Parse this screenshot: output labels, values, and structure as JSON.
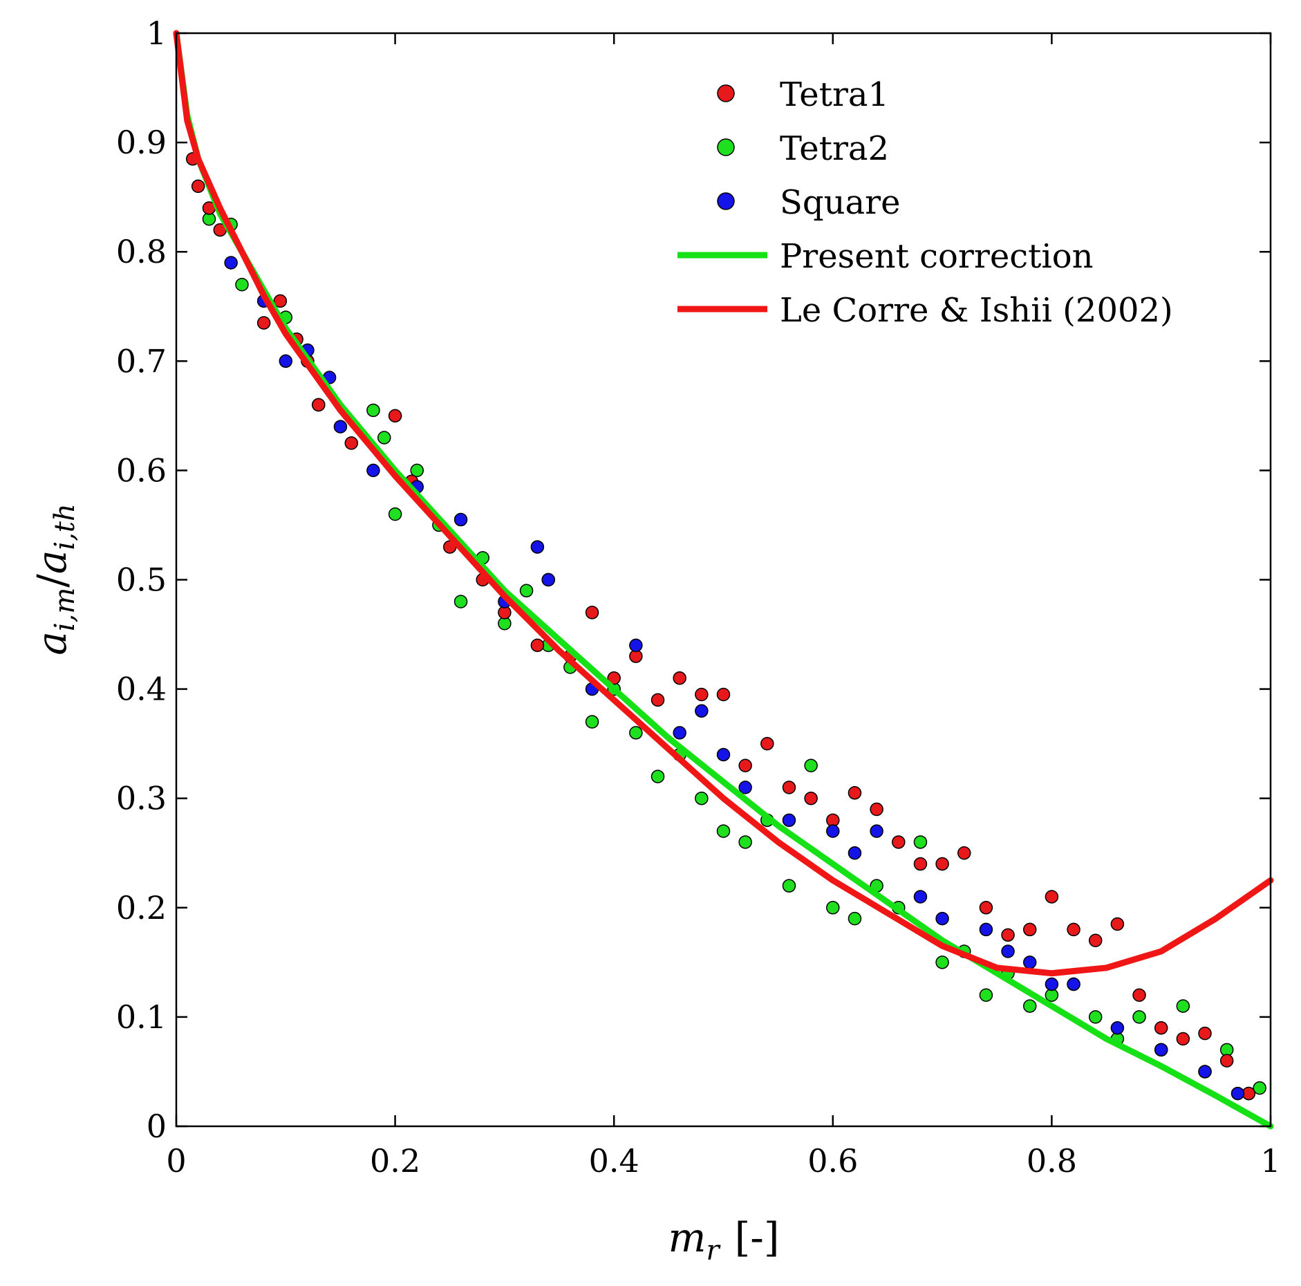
{
  "chart_data": {
    "type": "scatter",
    "title": "",
    "xlabel_main": "m",
    "xlabel_sub": "r",
    "xlabel_unit": "[-]",
    "ylabel_num_main": "a",
    "ylabel_num_sub": "i,m",
    "ylabel_slash": "/",
    "ylabel_den_main": "a",
    "ylabel_den_sub": "i,th",
    "xlim": [
      0,
      1
    ],
    "ylim": [
      0,
      1
    ],
    "xticks": [
      0,
      0.2,
      0.4,
      0.6,
      0.8,
      1
    ],
    "xtick_labels": [
      "0",
      "0.2",
      "0.4",
      "0.6",
      "0.8",
      "1"
    ],
    "yticks": [
      0,
      0.1,
      0.2,
      0.3,
      0.4,
      0.5,
      0.6,
      0.7,
      0.8,
      0.9,
      1
    ],
    "ytick_labels": [
      "0",
      "0.1",
      "0.2",
      "0.3",
      "0.4",
      "0.5",
      "0.6",
      "0.7",
      "0.8",
      "0.9",
      "1"
    ],
    "grid": false,
    "legend_position": "top-right",
    "scatter_series": [
      {
        "name": "Tetra1",
        "color": "#e8191b",
        "x": [
          0.015,
          0.02,
          0.03,
          0.04,
          0.08,
          0.095,
          0.11,
          0.12,
          0.13,
          0.16,
          0.2,
          0.215,
          0.25,
          0.28,
          0.3,
          0.33,
          0.34,
          0.36,
          0.38,
          0.4,
          0.42,
          0.44,
          0.46,
          0.48,
          0.5,
          0.52,
          0.54,
          0.56,
          0.58,
          0.6,
          0.62,
          0.64,
          0.66,
          0.68,
          0.7,
          0.72,
          0.74,
          0.76,
          0.78,
          0.8,
          0.82,
          0.84,
          0.86,
          0.88,
          0.9,
          0.92,
          0.94,
          0.96,
          0.98
        ],
        "y": [
          0.885,
          0.86,
          0.84,
          0.82,
          0.735,
          0.755,
          0.72,
          0.7,
          0.66,
          0.625,
          0.65,
          0.59,
          0.53,
          0.5,
          0.47,
          0.44,
          0.5,
          0.43,
          0.47,
          0.41,
          0.43,
          0.39,
          0.41,
          0.395,
          0.395,
          0.33,
          0.35,
          0.31,
          0.3,
          0.28,
          0.305,
          0.29,
          0.26,
          0.24,
          0.24,
          0.25,
          0.2,
          0.175,
          0.18,
          0.21,
          0.18,
          0.17,
          0.185,
          0.12,
          0.09,
          0.08,
          0.085,
          0.06,
          0.03
        ]
      },
      {
        "name": "Tetra2",
        "color": "#1fe01f",
        "x": [
          0.03,
          0.05,
          0.06,
          0.1,
          0.13,
          0.18,
          0.19,
          0.2,
          0.22,
          0.24,
          0.26,
          0.28,
          0.3,
          0.32,
          0.34,
          0.36,
          0.38,
          0.4,
          0.42,
          0.44,
          0.46,
          0.48,
          0.5,
          0.52,
          0.54,
          0.56,
          0.58,
          0.6,
          0.62,
          0.64,
          0.66,
          0.68,
          0.7,
          0.72,
          0.74,
          0.76,
          0.78,
          0.8,
          0.82,
          0.84,
          0.86,
          0.88,
          0.9,
          0.92,
          0.94,
          0.96,
          0.98,
          0.99
        ],
        "y": [
          0.83,
          0.825,
          0.77,
          0.74,
          0.66,
          0.655,
          0.63,
          0.56,
          0.6,
          0.55,
          0.48,
          0.52,
          0.46,
          0.49,
          0.44,
          0.42,
          0.37,
          0.4,
          0.36,
          0.32,
          0.34,
          0.3,
          0.27,
          0.26,
          0.28,
          0.22,
          0.33,
          0.2,
          0.19,
          0.22,
          0.2,
          0.26,
          0.15,
          0.16,
          0.12,
          0.14,
          0.11,
          0.12,
          0.13,
          0.1,
          0.08,
          0.1,
          0.07,
          0.11,
          0.05,
          0.07,
          0.03,
          0.035
        ]
      },
      {
        "name": "Square",
        "color": "#1414e8",
        "x": [
          0.05,
          0.08,
          0.1,
          0.12,
          0.14,
          0.15,
          0.18,
          0.22,
          0.26,
          0.3,
          0.33,
          0.34,
          0.38,
          0.42,
          0.46,
          0.48,
          0.5,
          0.52,
          0.56,
          0.6,
          0.62,
          0.64,
          0.68,
          0.7,
          0.74,
          0.76,
          0.78,
          0.8,
          0.82,
          0.86,
          0.9,
          0.94,
          0.97
        ],
        "y": [
          0.79,
          0.755,
          0.7,
          0.71,
          0.685,
          0.64,
          0.6,
          0.585,
          0.555,
          0.48,
          0.53,
          0.5,
          0.4,
          0.44,
          0.36,
          0.38,
          0.34,
          0.31,
          0.28,
          0.27,
          0.25,
          0.27,
          0.21,
          0.19,
          0.18,
          0.16,
          0.15,
          0.13,
          0.13,
          0.09,
          0.07,
          0.05,
          0.03
        ]
      }
    ],
    "line_series": [
      {
        "name": "Present correction",
        "color": "#16e016",
        "x": [
          0,
          0.01,
          0.02,
          0.04,
          0.06,
          0.08,
          0.1,
          0.15,
          0.2,
          0.25,
          0.3,
          0.35,
          0.4,
          0.45,
          0.5,
          0.55,
          0.6,
          0.65,
          0.7,
          0.75,
          0.8,
          0.85,
          0.9,
          0.95,
          1.0
        ],
        "y": [
          1.0,
          0.925,
          0.885,
          0.835,
          0.8,
          0.765,
          0.73,
          0.66,
          0.6,
          0.545,
          0.49,
          0.445,
          0.4,
          0.355,
          0.315,
          0.275,
          0.24,
          0.205,
          0.17,
          0.14,
          0.11,
          0.08,
          0.055,
          0.028,
          0.0
        ]
      },
      {
        "name": "Le Corre & Ishii (2002)",
        "color": "#f01616",
        "x": [
          0,
          0.01,
          0.02,
          0.04,
          0.06,
          0.08,
          0.1,
          0.15,
          0.2,
          0.25,
          0.3,
          0.35,
          0.4,
          0.45,
          0.5,
          0.55,
          0.6,
          0.65,
          0.7,
          0.75,
          0.8,
          0.85,
          0.9,
          0.95,
          1.0
        ],
        "y": [
          1.0,
          0.92,
          0.885,
          0.84,
          0.8,
          0.76,
          0.725,
          0.655,
          0.595,
          0.54,
          0.485,
          0.435,
          0.39,
          0.345,
          0.3,
          0.26,
          0.225,
          0.195,
          0.165,
          0.145,
          0.14,
          0.145,
          0.16,
          0.19,
          0.225
        ]
      }
    ]
  }
}
